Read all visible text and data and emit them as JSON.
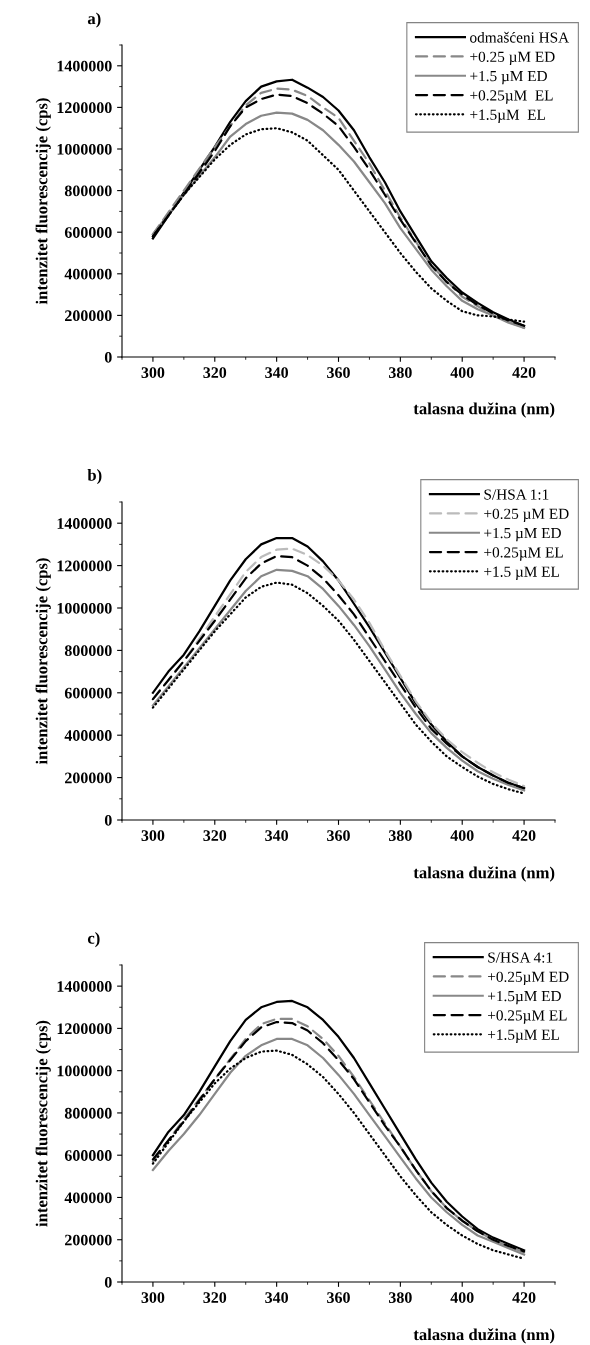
{
  "chart_data": [
    {
      "type": "line",
      "title": "a)",
      "xlabel": "talasna dužina (nm)",
      "ylabel": "intenzitet fluorescencije (cps)",
      "xlim": [
        290,
        430
      ],
      "xticks": [
        300,
        320,
        340,
        360,
        380,
        400,
        420
      ],
      "ylim": [
        0,
        1500000
      ],
      "yticks": [
        0,
        200000,
        400000,
        600000,
        800000,
        1000000,
        1200000,
        1400000
      ],
      "grid": false,
      "legend": "top right",
      "series": [
        {
          "name": "odmašćeni HSA",
          "color": "#000000",
          "line_style": "solid",
          "x": [
            300,
            305,
            310,
            315,
            320,
            325,
            330,
            335,
            340,
            345,
            350,
            355,
            360,
            365,
            370,
            375,
            380,
            385,
            390,
            395,
            400,
            405,
            410,
            415,
            420
          ],
          "values": [
            570000,
            680000,
            790000,
            900000,
            1010000,
            1130000,
            1230000,
            1300000,
            1325000,
            1333000,
            1295000,
            1250000,
            1185000,
            1090000,
            960000,
            840000,
            700000,
            580000,
            460000,
            380000,
            310000,
            260000,
            215000,
            180000,
            150000
          ]
        },
        {
          "name": "+0.25 µM ED",
          "color": "#888888",
          "line_style": "dashed",
          "x": [
            300,
            310,
            320,
            330,
            335,
            340,
            345,
            350,
            355,
            360,
            370,
            380,
            390,
            400,
            410,
            420
          ],
          "values": [
            590000,
            800000,
            1010000,
            1210000,
            1270000,
            1290000,
            1285000,
            1255000,
            1200000,
            1150000,
            930000,
            670000,
            440000,
            290000,
            200000,
            140000
          ]
        },
        {
          "name": "+1.5 µM ED",
          "color": "#888888",
          "line_style": "solid",
          "x": [
            300,
            310,
            320,
            325,
            330,
            335,
            340,
            345,
            350,
            355,
            360,
            365,
            370,
            375,
            380,
            385,
            390,
            395,
            400,
            405,
            410,
            415,
            420
          ],
          "values": [
            590000,
            780000,
            960000,
            1060000,
            1120000,
            1160000,
            1175000,
            1170000,
            1140000,
            1090000,
            1020000,
            940000,
            840000,
            740000,
            620000,
            520000,
            420000,
            340000,
            270000,
            230000,
            200000,
            165000,
            140000
          ]
        },
        {
          "name": "+0.25µM  EL",
          "color": "#000000",
          "line_style": "dashed",
          "x": [
            300,
            310,
            320,
            325,
            330,
            335,
            340,
            345,
            350,
            355,
            360,
            365,
            370,
            375,
            380,
            385,
            390,
            395,
            400,
            405,
            410,
            415,
            420
          ],
          "values": [
            580000,
            780000,
            990000,
            1110000,
            1200000,
            1240000,
            1262000,
            1255000,
            1220000,
            1170000,
            1110000,
            1010000,
            900000,
            780000,
            660000,
            550000,
            440000,
            360000,
            300000,
            250000,
            210000,
            175000,
            150000
          ]
        },
        {
          "name": "+1.5µM  EL",
          "color": "#000000",
          "line_style": "dotted",
          "x": [
            300,
            310,
            320,
            325,
            330,
            335,
            340,
            345,
            350,
            355,
            360,
            365,
            370,
            375,
            380,
            385,
            390,
            395,
            400,
            405,
            410,
            415,
            420
          ],
          "values": [
            580000,
            780000,
            950000,
            1020000,
            1070000,
            1095000,
            1100000,
            1080000,
            1040000,
            970000,
            900000,
            800000,
            700000,
            600000,
            500000,
            410000,
            330000,
            270000,
            220000,
            200000,
            195000,
            180000,
            170000
          ]
        }
      ]
    },
    {
      "type": "line",
      "title": "b)",
      "xlabel": "talasna dužina (nm)",
      "ylabel": "intenzitet fluorescencije (cps)",
      "xlim": [
        290,
        430
      ],
      "xticks": [
        300,
        320,
        340,
        360,
        380,
        400,
        420
      ],
      "ylim": [
        0,
        1500000
      ],
      "yticks": [
        0,
        200000,
        400000,
        600000,
        800000,
        1000000,
        1200000,
        1400000
      ],
      "grid": false,
      "legend": "top right",
      "series": [
        {
          "name": "S/HSA 1:1",
          "color": "#000000",
          "line_style": "solid",
          "x": [
            300,
            305,
            310,
            315,
            320,
            325,
            330,
            335,
            340,
            345,
            350,
            355,
            360,
            365,
            370,
            375,
            380,
            385,
            390,
            395,
            400,
            405,
            410,
            415,
            420
          ],
          "values": [
            600000,
            700000,
            780000,
            890000,
            1010000,
            1130000,
            1230000,
            1300000,
            1330000,
            1330000,
            1290000,
            1220000,
            1130000,
            1020000,
            910000,
            790000,
            670000,
            550000,
            450000,
            370000,
            300000,
            250000,
            210000,
            175000,
            150000
          ]
        },
        {
          "name": "+0.25 µM ED",
          "color": "#bbbbbb",
          "line_style": "dashed",
          "x": [
            300,
            310,
            320,
            330,
            335,
            340,
            345,
            350,
            355,
            360,
            365,
            370,
            375,
            380,
            385,
            390,
            395,
            400,
            405,
            410,
            415,
            420
          ],
          "values": [
            570000,
            750000,
            960000,
            1170000,
            1240000,
            1275000,
            1280000,
            1250000,
            1200000,
            1130000,
            1040000,
            930000,
            800000,
            680000,
            560000,
            460000,
            380000,
            320000,
            270000,
            225000,
            190000,
            160000
          ]
        },
        {
          "name": "+1.5 µM ED",
          "color": "#888888",
          "line_style": "solid",
          "x": [
            300,
            310,
            320,
            330,
            335,
            340,
            345,
            350,
            355,
            360,
            365,
            370,
            375,
            380,
            385,
            390,
            395,
            400,
            405,
            410,
            415,
            420
          ],
          "values": [
            540000,
            720000,
            900000,
            1080000,
            1150000,
            1180000,
            1175000,
            1150000,
            1090000,
            1010000,
            920000,
            820000,
            710000,
            600000,
            500000,
            410000,
            340000,
            280000,
            230000,
            195000,
            165000,
            140000
          ]
        },
        {
          "name": "+0.25µM EL",
          "color": "#000000",
          "line_style": "dashed",
          "x": [
            300,
            310,
            320,
            330,
            335,
            340,
            345,
            350,
            355,
            360,
            365,
            370,
            375,
            380,
            385,
            390,
            395,
            400,
            405,
            410,
            415,
            420
          ],
          "values": [
            570000,
            750000,
            940000,
            1140000,
            1210000,
            1245000,
            1240000,
            1200000,
            1140000,
            1060000,
            970000,
            860000,
            750000,
            640000,
            530000,
            430000,
            360000,
            300000,
            250000,
            210000,
            175000,
            150000
          ]
        },
        {
          "name": "+1.5 µM EL",
          "color": "#000000",
          "line_style": "dotted",
          "x": [
            300,
            310,
            320,
            330,
            335,
            340,
            345,
            350,
            355,
            360,
            365,
            370,
            375,
            380,
            385,
            390,
            395,
            400,
            405,
            410,
            415,
            420
          ],
          "values": [
            530000,
            710000,
            890000,
            1050000,
            1100000,
            1120000,
            1110000,
            1070000,
            1010000,
            940000,
            850000,
            750000,
            650000,
            550000,
            450000,
            370000,
            300000,
            250000,
            205000,
            170000,
            145000,
            125000
          ]
        }
      ]
    },
    {
      "type": "line",
      "title": "c)",
      "xlabel": "talasna dužina (nm)",
      "ylabel": "intenzitet fluorescencije (cps)",
      "xlim": [
        290,
        430
      ],
      "xticks": [
        300,
        320,
        340,
        360,
        380,
        400,
        420
      ],
      "ylim": [
        0,
        1500000
      ],
      "yticks": [
        0,
        200000,
        400000,
        600000,
        800000,
        1000000,
        1200000,
        1400000
      ],
      "grid": false,
      "legend": "top right",
      "series": [
        {
          "name": "S/HSA 4:1",
          "color": "#000000",
          "line_style": "solid",
          "x": [
            300,
            305,
            310,
            315,
            320,
            325,
            330,
            335,
            340,
            345,
            350,
            355,
            360,
            365,
            370,
            375,
            380,
            385,
            390,
            395,
            400,
            405,
            410,
            415,
            420
          ],
          "values": [
            600000,
            710000,
            790000,
            900000,
            1020000,
            1140000,
            1240000,
            1300000,
            1325000,
            1330000,
            1300000,
            1240000,
            1160000,
            1060000,
            940000,
            820000,
            700000,
            580000,
            470000,
            380000,
            310000,
            250000,
            210000,
            180000,
            150000
          ]
        },
        {
          "name": "+0.25µM ED",
          "color": "#888888",
          "line_style": "dashed",
          "x": [
            300,
            310,
            320,
            330,
            335,
            340,
            345,
            350,
            355,
            360,
            365,
            370,
            375,
            380,
            385,
            390,
            395,
            400,
            405,
            410,
            415,
            420
          ],
          "values": [
            570000,
            770000,
            960000,
            1150000,
            1220000,
            1245000,
            1245000,
            1210000,
            1150000,
            1070000,
            970000,
            860000,
            750000,
            640000,
            530000,
            430000,
            350000,
            290000,
            240000,
            200000,
            170000,
            140000
          ]
        },
        {
          "name": "+1.5µM ED",
          "color": "#888888",
          "line_style": "solid",
          "x": [
            300,
            305,
            310,
            315,
            320,
            325,
            330,
            335,
            340,
            345,
            350,
            355,
            360,
            365,
            370,
            375,
            380,
            385,
            390,
            395,
            400,
            405,
            410,
            415,
            420
          ],
          "values": [
            530000,
            620000,
            700000,
            790000,
            890000,
            990000,
            1070000,
            1120000,
            1150000,
            1150000,
            1120000,
            1060000,
            980000,
            890000,
            790000,
            690000,
            590000,
            490000,
            400000,
            330000,
            270000,
            220000,
            190000,
            160000,
            130000
          ]
        },
        {
          "name": "+0.25µM EL",
          "color": "#000000",
          "line_style": "dashed",
          "x": [
            300,
            310,
            320,
            330,
            335,
            340,
            345,
            350,
            355,
            360,
            365,
            370,
            375,
            380,
            385,
            390,
            395,
            400,
            405,
            410,
            415,
            420
          ],
          "values": [
            580000,
            760000,
            960000,
            1140000,
            1205000,
            1230000,
            1225000,
            1190000,
            1130000,
            1050000,
            960000,
            850000,
            740000,
            640000,
            530000,
            430000,
            350000,
            290000,
            240000,
            200000,
            170000,
            145000
          ]
        },
        {
          "name": "+1.5µM EL",
          "color": "#000000",
          "line_style": "dotted",
          "x": [
            300,
            310,
            320,
            325,
            330,
            335,
            340,
            345,
            350,
            355,
            360,
            365,
            370,
            375,
            380,
            385,
            390,
            395,
            400,
            405,
            410,
            415,
            420
          ],
          "values": [
            560000,
            760000,
            940000,
            1010000,
            1060000,
            1090000,
            1095000,
            1075000,
            1030000,
            970000,
            890000,
            800000,
            700000,
            600000,
            500000,
            410000,
            330000,
            270000,
            220000,
            180000,
            150000,
            130000,
            110000
          ]
        }
      ]
    }
  ]
}
